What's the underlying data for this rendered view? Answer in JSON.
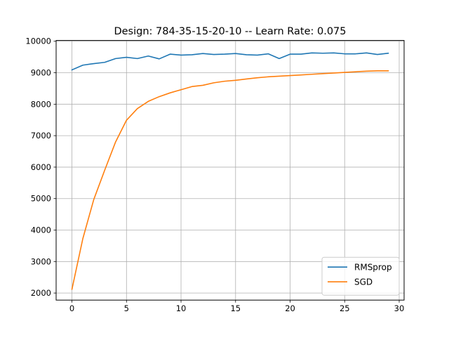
{
  "chart_data": {
    "type": "line",
    "title": "Design: 784-35-15-20-10 -- Learn Rate: 0.075",
    "xlabel": "",
    "ylabel": "",
    "xlim": [
      -1.45,
      30.45
    ],
    "ylim": [
      1775,
      10025
    ],
    "x_ticks": [
      0,
      5,
      10,
      15,
      20,
      25,
      30
    ],
    "y_ticks": [
      2000,
      3000,
      4000,
      5000,
      6000,
      7000,
      8000,
      9000,
      10000
    ],
    "grid": true,
    "legend_position": "lower-right",
    "x": [
      0,
      1,
      2,
      3,
      4,
      5,
      6,
      7,
      8,
      9,
      10,
      11,
      12,
      13,
      14,
      15,
      16,
      17,
      18,
      19,
      20,
      21,
      22,
      23,
      24,
      25,
      26,
      27,
      28,
      29
    ],
    "series": [
      {
        "name": "RMSprop",
        "color": "#1f77b4",
        "values": [
          9090,
          9240,
          9290,
          9330,
          9450,
          9490,
          9450,
          9530,
          9440,
          9590,
          9560,
          9570,
          9610,
          9580,
          9590,
          9610,
          9570,
          9560,
          9600,
          9450,
          9590,
          9590,
          9630,
          9620,
          9630,
          9600,
          9600,
          9630,
          9580,
          9620
        ]
      },
      {
        "name": "SGD",
        "color": "#ff7f0e",
        "values": [
          2120,
          3730,
          4970,
          5900,
          6800,
          7490,
          7860,
          8090,
          8240,
          8360,
          8460,
          8560,
          8600,
          8680,
          8730,
          8760,
          8800,
          8840,
          8870,
          8890,
          8910,
          8930,
          8950,
          8970,
          8990,
          9010,
          9030,
          9050,
          9060,
          9060
        ]
      }
    ]
  }
}
